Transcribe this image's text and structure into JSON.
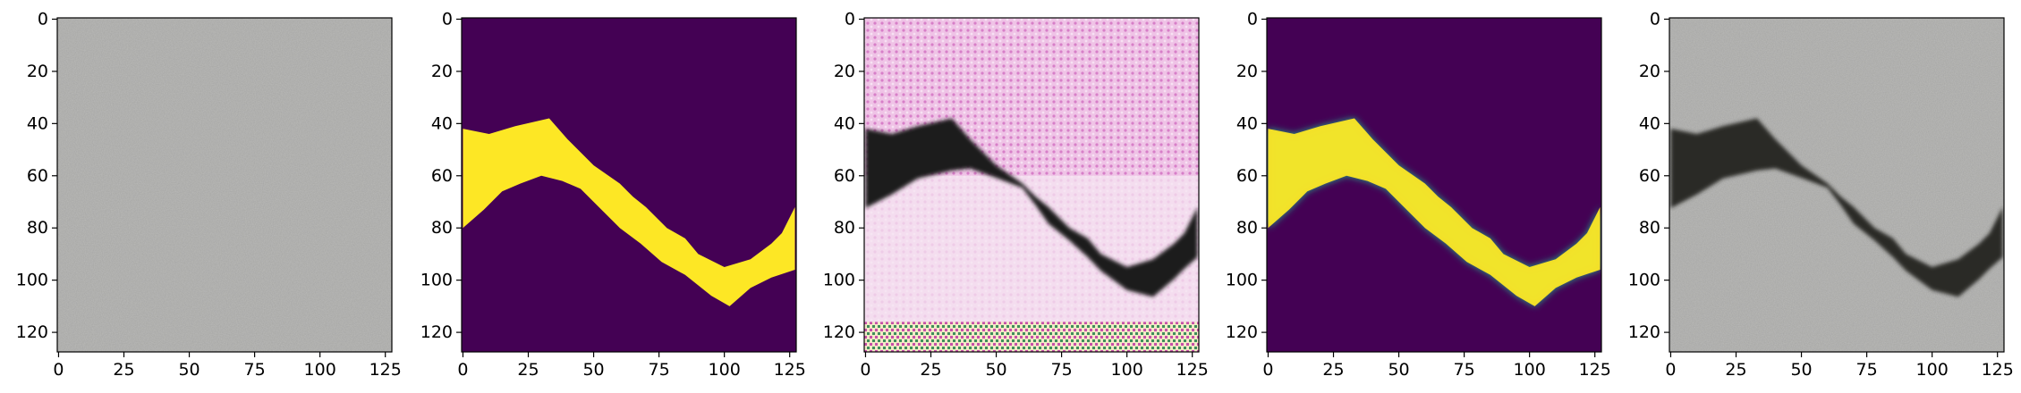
{
  "panels": [
    {
      "name": "grey-texture-image",
      "kind": "texture"
    },
    {
      "name": "binary-mask-image",
      "kind": "mask"
    },
    {
      "name": "pink-generated-crack-image",
      "kind": "pink"
    },
    {
      "name": "soft-mask-image",
      "kind": "softmask"
    },
    {
      "name": "composited-crack-image",
      "kind": "composite"
    }
  ],
  "axes": {
    "x_ticks": [
      "0",
      "25",
      "50",
      "75",
      "100",
      "125"
    ],
    "y_ticks": [
      "0",
      "20",
      "40",
      "60",
      "80",
      "100",
      "120"
    ],
    "x_range": [
      -0.5,
      127.5
    ],
    "y_range": [
      -0.5,
      127.5
    ]
  },
  "crack_path": {
    "upper": [
      [
        0,
        42
      ],
      [
        10,
        44
      ],
      [
        20,
        41
      ],
      [
        33,
        38
      ],
      [
        40,
        46
      ],
      [
        50,
        56
      ],
      [
        60,
        63
      ],
      [
        65,
        68
      ],
      [
        70,
        72
      ],
      [
        78,
        80
      ],
      [
        85,
        84
      ],
      [
        90,
        90
      ],
      [
        100,
        95
      ],
      [
        110,
        92
      ],
      [
        118,
        86
      ],
      [
        122,
        82
      ],
      [
        127,
        72
      ]
    ],
    "lower": [
      [
        0,
        80
      ],
      [
        8,
        73
      ],
      [
        15,
        66
      ],
      [
        22,
        63
      ],
      [
        30,
        60
      ],
      [
        38,
        62
      ],
      [
        45,
        65
      ],
      [
        52,
        72
      ],
      [
        60,
        80
      ],
      [
        68,
        86
      ],
      [
        76,
        93
      ],
      [
        85,
        98
      ],
      [
        95,
        106
      ],
      [
        102,
        110
      ],
      [
        110,
        103
      ],
      [
        118,
        99
      ],
      [
        127,
        96
      ]
    ]
  },
  "colors": {
    "viridis_dark": "#440154",
    "viridis_yellow": "#fde725",
    "grey_base": "#a6a6a4",
    "pink_base": "#e8b6dc",
    "crack_dark": "#2a2a26"
  }
}
